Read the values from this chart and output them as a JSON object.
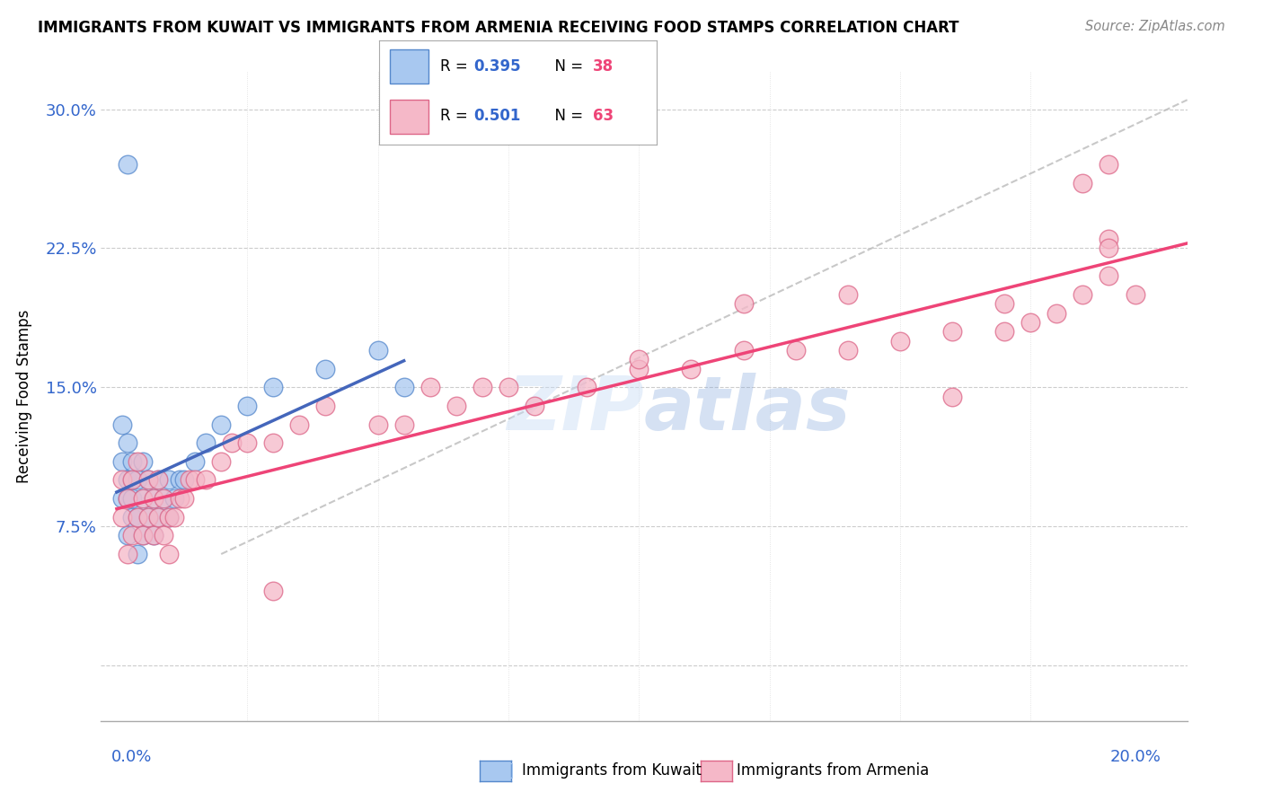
{
  "title": "IMMIGRANTS FROM KUWAIT VS IMMIGRANTS FROM ARMENIA RECEIVING FOOD STAMPS CORRELATION CHART",
  "source": "Source: ZipAtlas.com",
  "ylabel": "Receiving Food Stamps",
  "ylim": [
    -0.03,
    0.32
  ],
  "xlim": [
    -0.003,
    0.205
  ],
  "yticks": [
    0.0,
    0.075,
    0.15,
    0.225,
    0.3
  ],
  "yticklabels": [
    "",
    "7.5%",
    "15.0%",
    "22.5%",
    "30.0%"
  ],
  "watermark": "ZIPatlas",
  "color_kuwait": "#A8C8F0",
  "color_armenia": "#F5B8C8",
  "color_kuwait_edge": "#5588CC",
  "color_armenia_edge": "#DD6688",
  "color_kuwait_line": "#4466BB",
  "color_armenia_line": "#EE4477",
  "color_gray_dash": "#BBBBBB",
  "kuwait_x": [
    0.001,
    0.001,
    0.001,
    0.002,
    0.002,
    0.002,
    0.002,
    0.003,
    0.003,
    0.003,
    0.003,
    0.004,
    0.004,
    0.004,
    0.005,
    0.005,
    0.005,
    0.006,
    0.006,
    0.007,
    0.007,
    0.008,
    0.008,
    0.009,
    0.01,
    0.01,
    0.011,
    0.012,
    0.013,
    0.015,
    0.017,
    0.02,
    0.025,
    0.03,
    0.04,
    0.05,
    0.055,
    0.002
  ],
  "kuwait_y": [
    0.09,
    0.11,
    0.13,
    0.07,
    0.09,
    0.1,
    0.12,
    0.08,
    0.09,
    0.1,
    0.11,
    0.06,
    0.08,
    0.1,
    0.07,
    0.09,
    0.11,
    0.08,
    0.1,
    0.07,
    0.09,
    0.08,
    0.1,
    0.09,
    0.08,
    0.1,
    0.09,
    0.1,
    0.1,
    0.11,
    0.12,
    0.13,
    0.14,
    0.15,
    0.16,
    0.17,
    0.15,
    0.27
  ],
  "armenia_x": [
    0.001,
    0.001,
    0.002,
    0.002,
    0.003,
    0.003,
    0.004,
    0.004,
    0.005,
    0.005,
    0.006,
    0.006,
    0.007,
    0.007,
    0.008,
    0.008,
    0.009,
    0.009,
    0.01,
    0.01,
    0.011,
    0.012,
    0.013,
    0.014,
    0.015,
    0.017,
    0.02,
    0.022,
    0.025,
    0.03,
    0.035,
    0.04,
    0.05,
    0.055,
    0.06,
    0.065,
    0.07,
    0.075,
    0.08,
    0.09,
    0.1,
    0.11,
    0.12,
    0.13,
    0.14,
    0.15,
    0.16,
    0.17,
    0.175,
    0.18,
    0.185,
    0.19,
    0.195,
    0.1,
    0.12,
    0.14,
    0.16,
    0.17,
    0.185,
    0.19,
    0.19,
    0.19,
    0.03
  ],
  "armenia_y": [
    0.08,
    0.1,
    0.06,
    0.09,
    0.07,
    0.1,
    0.08,
    0.11,
    0.07,
    0.09,
    0.08,
    0.1,
    0.07,
    0.09,
    0.08,
    0.1,
    0.07,
    0.09,
    0.06,
    0.08,
    0.08,
    0.09,
    0.09,
    0.1,
    0.1,
    0.1,
    0.11,
    0.12,
    0.12,
    0.12,
    0.13,
    0.14,
    0.13,
    0.13,
    0.15,
    0.14,
    0.15,
    0.15,
    0.14,
    0.15,
    0.16,
    0.16,
    0.17,
    0.17,
    0.17,
    0.175,
    0.18,
    0.18,
    0.185,
    0.19,
    0.2,
    0.21,
    0.2,
    0.165,
    0.195,
    0.2,
    0.145,
    0.195,
    0.26,
    0.23,
    0.225,
    0.27,
    0.04
  ],
  "kuwait_line_x": [
    0.0,
    0.055
  ],
  "armenia_line_x": [
    0.0,
    0.205
  ],
  "gray_line_x": [
    0.0,
    0.205
  ]
}
